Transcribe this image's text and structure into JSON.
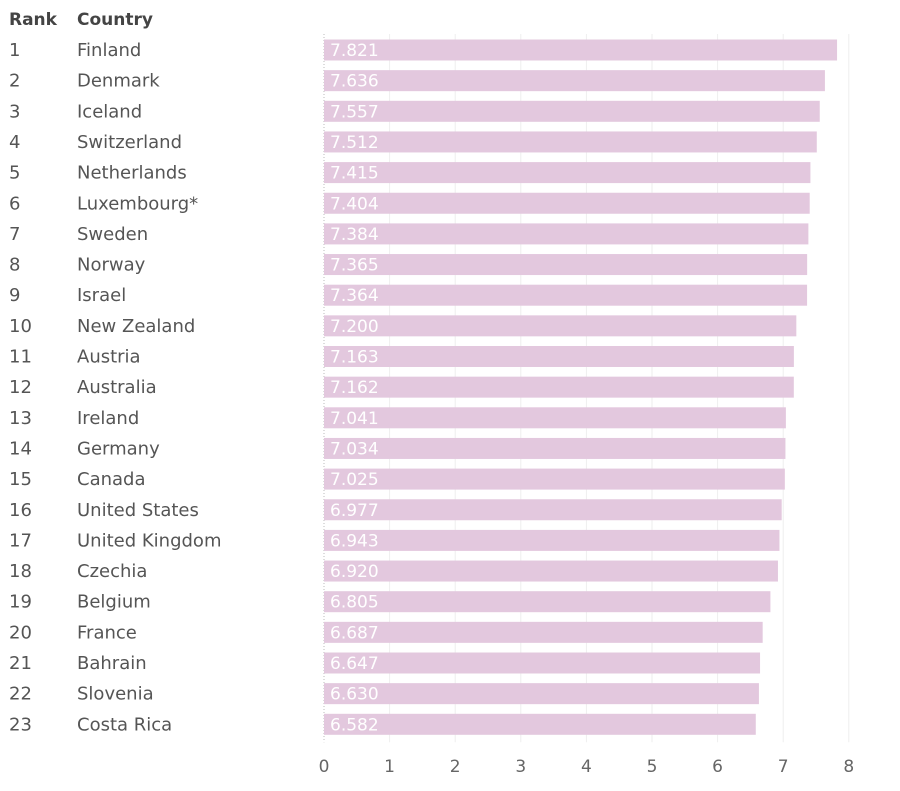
{
  "headers": {
    "rank": "Rank",
    "country": "Country"
  },
  "colors": {
    "bar": "#e3c8de",
    "value_text": "#ffffff",
    "gridline": "#eeeeee"
  },
  "chart_data": {
    "type": "bar",
    "orientation": "horizontal",
    "categories": [
      "Finland",
      "Denmark",
      "Iceland",
      "Switzerland",
      "Netherlands",
      "Luxembourg*",
      "Sweden",
      "Norway",
      "Israel",
      "New Zealand",
      "Austria",
      "Australia",
      "Ireland",
      "Germany",
      "Canada",
      "United States",
      "United Kingdom",
      "Czechia",
      "Belgium",
      "France",
      "Bahrain",
      "Slovenia",
      "Costa Rica"
    ],
    "ranks": [
      1,
      2,
      3,
      4,
      5,
      6,
      7,
      8,
      9,
      10,
      11,
      12,
      13,
      14,
      15,
      16,
      17,
      18,
      19,
      20,
      21,
      22,
      23
    ],
    "values": [
      7.821,
      7.636,
      7.557,
      7.512,
      7.415,
      7.404,
      7.384,
      7.365,
      7.364,
      7.2,
      7.163,
      7.162,
      7.041,
      7.034,
      7.025,
      6.977,
      6.943,
      6.92,
      6.805,
      6.687,
      6.647,
      6.63,
      6.582
    ],
    "value_labels": [
      "7.821",
      "7.636",
      "7.557",
      "7.512",
      "7.415",
      "7.404",
      "7.384",
      "7.365",
      "7.364",
      "7.200",
      "7.163",
      "7.162",
      "7.041",
      "7.034",
      "7.025",
      "6.977",
      "6.943",
      "6.920",
      "6.805",
      "6.687",
      "6.647",
      "6.630",
      "6.582"
    ],
    "x_ticks": [
      0,
      1,
      2,
      3,
      4,
      5,
      6,
      7,
      8
    ],
    "xlim": [
      0,
      8
    ],
    "grid": true
  }
}
